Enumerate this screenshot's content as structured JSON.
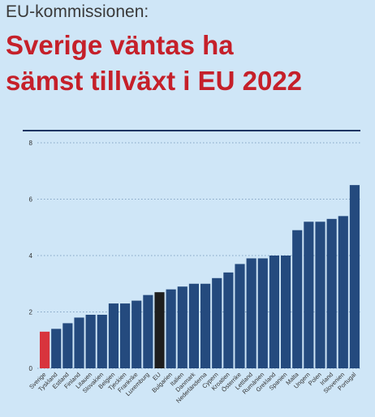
{
  "header": {
    "kicker": "EU-kommissionen:",
    "headline_line1": "Sverige väntas ha",
    "headline_line2": "sämst tillväxt i EU 2022"
  },
  "colors": {
    "background": "#cfe6f7",
    "bar_default": "#244a7e",
    "bar_sweden": "#d8343d",
    "bar_eu": "#1e1e1e",
    "title": "#c5202a",
    "rule": "#1d3563",
    "grid": "#6b8fb4"
  },
  "chart_data": {
    "type": "bar",
    "categories": [
      "Sverige",
      "Tyskland",
      "Estland",
      "Finland",
      "Litauen",
      "Slovakien",
      "Belgien",
      "Tjeckien",
      "Frankrike",
      "Luxemburg",
      "EU",
      "Bulgarien",
      "Italien",
      "Danmark",
      "Nederländerna",
      "Cypern",
      "Kroatien",
      "Österrike",
      "Lettland",
      "Rumänien",
      "Grekland",
      "Spanien",
      "Malta",
      "Ungern",
      "Polen",
      "Irland",
      "Slovenien",
      "Portugal"
    ],
    "values": [
      1.3,
      1.4,
      1.6,
      1.8,
      1.9,
      1.9,
      2.3,
      2.3,
      2.4,
      2.6,
      2.7,
      2.8,
      2.9,
      3.0,
      3.0,
      3.2,
      3.4,
      3.7,
      3.9,
      3.9,
      4.0,
      4.0,
      4.9,
      5.2,
      5.2,
      5.3,
      5.4,
      6.5
    ],
    "highlight": {
      "Sverige": "#d8343d",
      "EU": "#1e1e1e"
    },
    "yticks": [
      "0",
      "2",
      "4",
      "6",
      "8"
    ],
    "ylim": [
      0,
      8
    ],
    "grid": true,
    "legend": "none"
  }
}
